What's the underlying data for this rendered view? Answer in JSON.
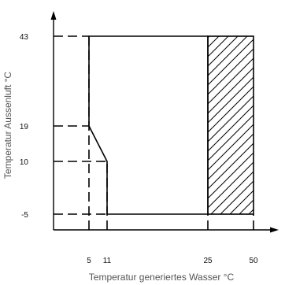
{
  "chart_data": {
    "type": "area",
    "xlabel": "Temperatur generiertes Wasser °C",
    "ylabel": "Temperatur Aussenluft °C",
    "x_ticks": [
      5,
      11,
      25,
      50
    ],
    "y_ticks": [
      -5,
      10,
      19,
      43
    ],
    "operating_envelope": {
      "points": [
        [
          5,
          43
        ],
        [
          25,
          43
        ],
        [
          25,
          -5
        ],
        [
          11,
          -5
        ],
        [
          11,
          10
        ],
        [
          5,
          19
        ]
      ]
    },
    "hatched_region": {
      "x_range": [
        25,
        50
      ],
      "y_range": [
        -5,
        43
      ]
    },
    "guide_lines": [
      {
        "from": [
          0,
          43
        ],
        "to": [
          5,
          43
        ]
      },
      {
        "from": [
          0,
          19
        ],
        "to": [
          5,
          19
        ]
      },
      {
        "from": [
          0,
          10
        ],
        "to": [
          11,
          10
        ]
      },
      {
        "from": [
          0,
          -5
        ],
        "to": [
          11,
          -5
        ]
      },
      {
        "from": [
          5,
          -12
        ],
        "to": [
          5,
          43
        ]
      },
      {
        "from": [
          11,
          -12
        ],
        "to": [
          11,
          10
        ]
      },
      {
        "from": [
          25,
          -12
        ],
        "to": [
          25,
          -5
        ]
      },
      {
        "from": [
          50,
          -12
        ],
        "to": [
          50,
          -5
        ]
      }
    ],
    "colors": {
      "line": "#000000",
      "axis_title": "#555555"
    },
    "grid": false
  }
}
